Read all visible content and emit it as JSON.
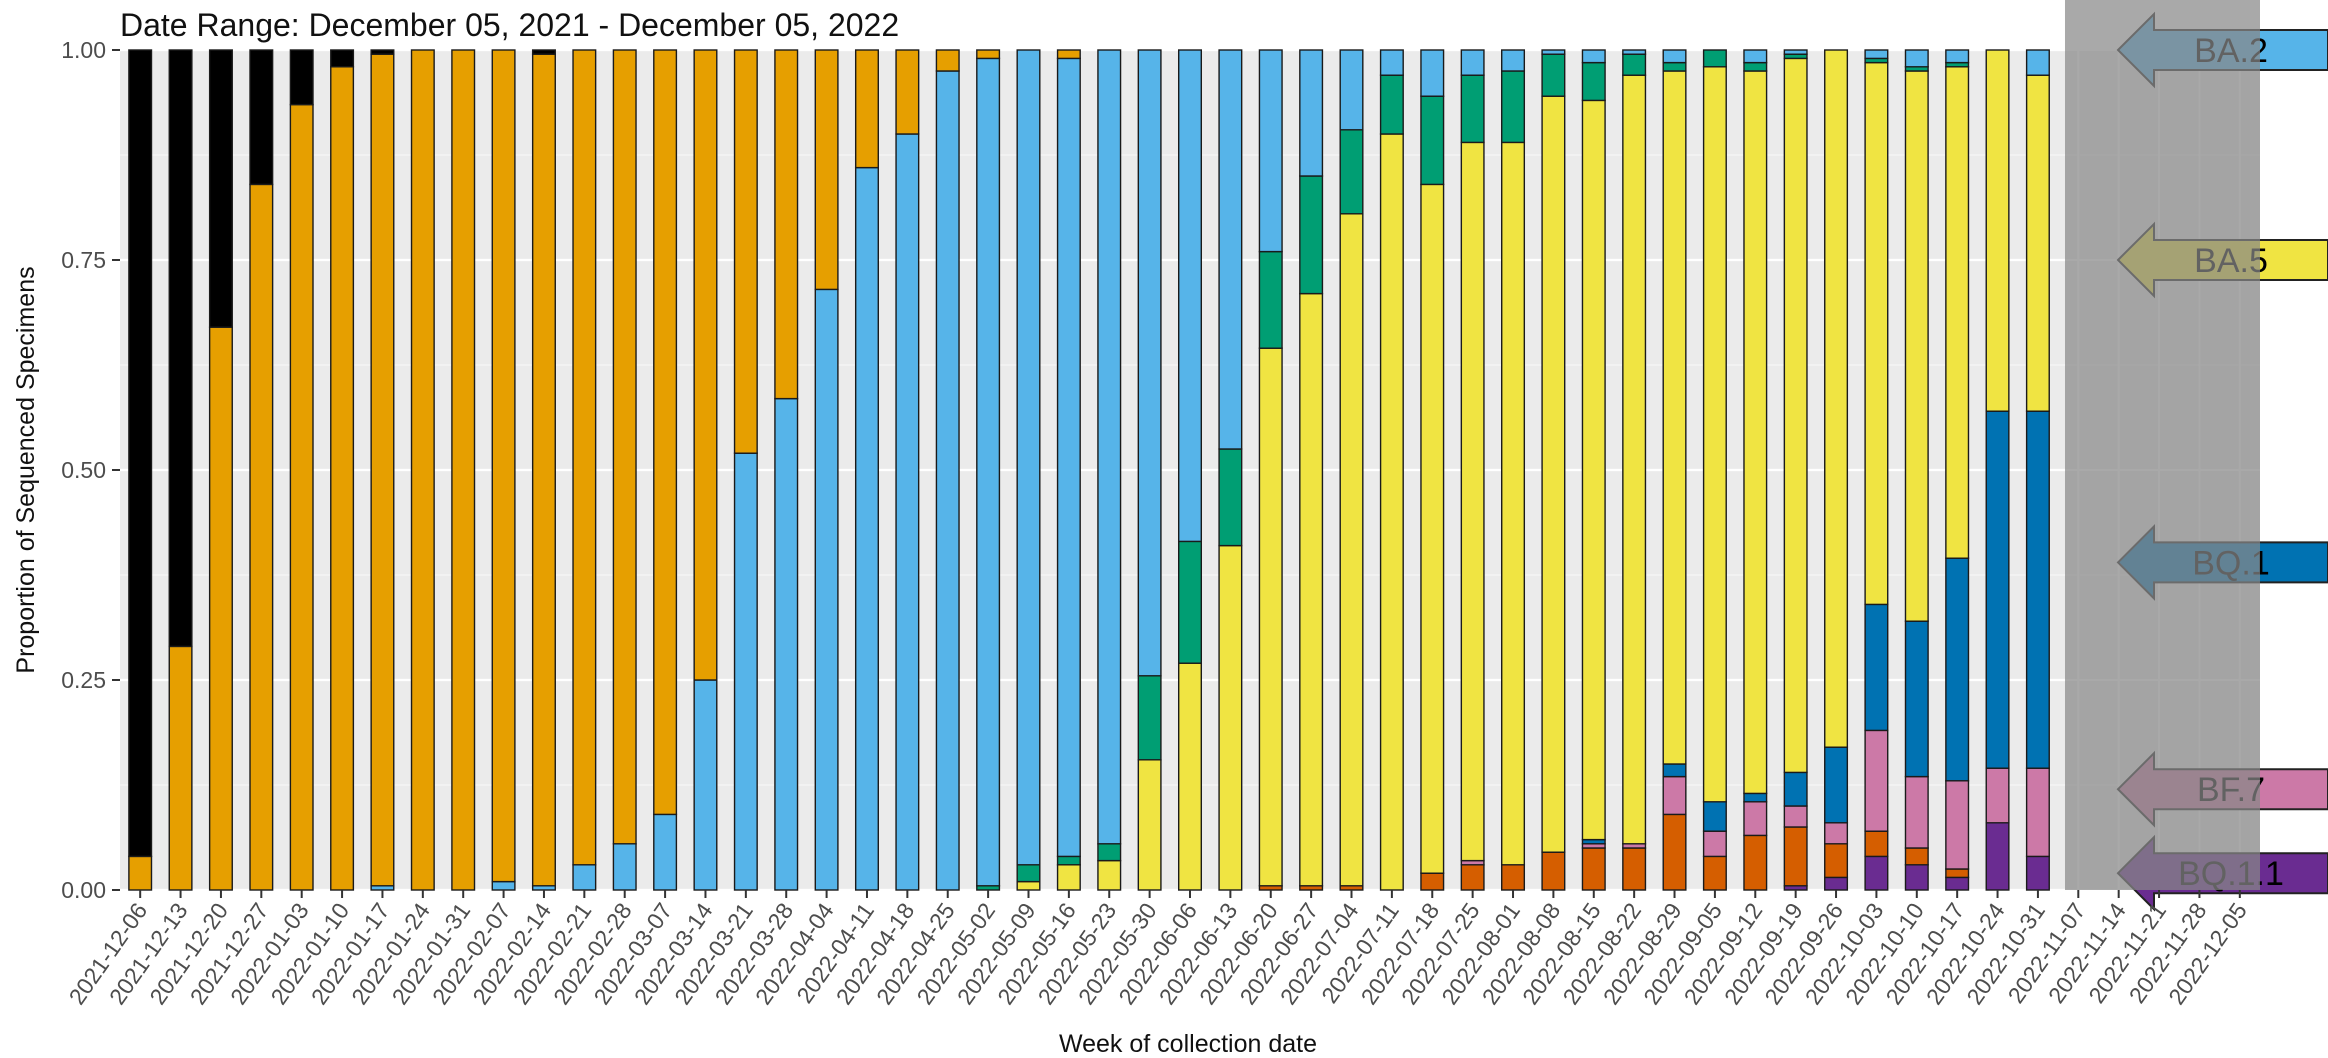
{
  "chart_data": {
    "type": "bar",
    "stacked": true,
    "title": "Date Range: December 05, 2021 - December 05, 2022",
    "xlabel": "Week of collection date",
    "ylabel": "Proportion of Sequenced Specimens",
    "ylim": [
      0,
      1
    ],
    "yticks": [
      "0.00",
      "0.25",
      "0.50",
      "0.75",
      "1.00"
    ],
    "grid": true,
    "shaded_region_start": "2022-11-07",
    "categories": [
      "2021-12-06",
      "2021-12-13",
      "2021-12-20",
      "2021-12-27",
      "2022-01-03",
      "2022-01-10",
      "2022-01-17",
      "2022-01-24",
      "2022-01-31",
      "2022-02-07",
      "2022-02-14",
      "2022-02-21",
      "2022-02-28",
      "2022-03-07",
      "2022-03-14",
      "2022-03-21",
      "2022-03-28",
      "2022-04-04",
      "2022-04-11",
      "2022-04-18",
      "2022-04-25",
      "2022-05-02",
      "2022-05-09",
      "2022-05-16",
      "2022-05-23",
      "2022-05-30",
      "2022-06-06",
      "2022-06-13",
      "2022-06-20",
      "2022-06-27",
      "2022-07-04",
      "2022-07-11",
      "2022-07-18",
      "2022-07-25",
      "2022-08-01",
      "2022-08-08",
      "2022-08-15",
      "2022-08-22",
      "2022-08-29",
      "2022-09-05",
      "2022-09-12",
      "2022-09-19",
      "2022-09-26",
      "2022-10-03",
      "2022-10-10",
      "2022-10-17",
      "2022-10-24",
      "2022-10-31",
      "2022-11-07",
      "2022-11-14",
      "2022-11-21",
      "2022-11-28",
      "2022-12-05"
    ],
    "colors": {
      "BQ.1.1": "#6a2c91",
      "BF.7": "#cc79a7",
      "BQ.1": "#0072b2",
      "BA.5": "#f0e442",
      "BA.2": "#56b4e9",
      "orange2": "#d55e00",
      "green": "#009e73",
      "orange": "#e69f00",
      "black": "#000000"
    },
    "stack_order": [
      "BQ.1.1",
      "orange2",
      "BF.7",
      "BQ.1",
      "BA.5",
      "green",
      "BA.2",
      "orange",
      "black"
    ],
    "bars": [
      {
        "BQ.1.1": 0,
        "orange2": 0,
        "BF.7": 0,
        "BQ.1": 0,
        "BA.5": 0,
        "green": 0,
        "BA.2": 0,
        "orange": 0.04,
        "black": 0.96
      },
      {
        "BQ.1.1": 0,
        "orange2": 0,
        "BF.7": 0,
        "BQ.1": 0,
        "BA.5": 0,
        "green": 0,
        "BA.2": 0,
        "orange": 0.29,
        "black": 0.71
      },
      {
        "BQ.1.1": 0,
        "orange2": 0,
        "BF.7": 0,
        "BQ.1": 0,
        "BA.5": 0,
        "green": 0,
        "BA.2": 0,
        "orange": 0.67,
        "black": 0.33
      },
      {
        "BQ.1.1": 0,
        "orange2": 0,
        "BF.7": 0,
        "BQ.1": 0,
        "BA.5": 0,
        "green": 0,
        "BA.2": 0,
        "orange": 0.84,
        "black": 0.16
      },
      {
        "BQ.1.1": 0,
        "orange2": 0,
        "BF.7": 0,
        "BQ.1": 0,
        "BA.5": 0,
        "green": 0,
        "BA.2": 0,
        "orange": 0.935,
        "black": 0.065
      },
      {
        "BQ.1.1": 0,
        "orange2": 0,
        "BF.7": 0,
        "BQ.1": 0,
        "BA.5": 0,
        "green": 0,
        "BA.2": 0,
        "orange": 0.98,
        "black": 0.02
      },
      {
        "BQ.1.1": 0,
        "orange2": 0,
        "BF.7": 0,
        "BQ.1": 0,
        "BA.5": 0,
        "green": 0,
        "BA.2": 0.005,
        "orange": 0.99,
        "black": 0.005
      },
      {
        "BQ.1.1": 0,
        "orange2": 0,
        "BF.7": 0,
        "BQ.1": 0,
        "BA.5": 0,
        "green": 0,
        "BA.2": 0,
        "orange": 1.0,
        "black": 0
      },
      {
        "BQ.1.1": 0,
        "orange2": 0,
        "BF.7": 0,
        "BQ.1": 0,
        "BA.5": 0,
        "green": 0,
        "BA.2": 0,
        "orange": 1.0,
        "black": 0
      },
      {
        "BQ.1.1": 0,
        "orange2": 0,
        "BF.7": 0,
        "BQ.1": 0,
        "BA.5": 0,
        "green": 0,
        "BA.2": 0.01,
        "orange": 0.99,
        "black": 0
      },
      {
        "BQ.1.1": 0,
        "orange2": 0,
        "BF.7": 0,
        "BQ.1": 0,
        "BA.5": 0,
        "green": 0,
        "BA.2": 0.005,
        "orange": 0.99,
        "black": 0.005
      },
      {
        "BQ.1.1": 0,
        "orange2": 0,
        "BF.7": 0,
        "BQ.1": 0,
        "BA.5": 0,
        "green": 0,
        "BA.2": 0.03,
        "orange": 0.97,
        "black": 0
      },
      {
        "BQ.1.1": 0,
        "orange2": 0,
        "BF.7": 0,
        "BQ.1": 0,
        "BA.5": 0,
        "green": 0,
        "BA.2": 0.055,
        "orange": 0.945,
        "black": 0
      },
      {
        "BQ.1.1": 0,
        "orange2": 0,
        "BF.7": 0,
        "BQ.1": 0,
        "BA.5": 0,
        "green": 0,
        "BA.2": 0.09,
        "orange": 0.91,
        "black": 0
      },
      {
        "BQ.1.1": 0,
        "orange2": 0,
        "BF.7": 0,
        "BQ.1": 0,
        "BA.5": 0,
        "green": 0,
        "BA.2": 0.25,
        "orange": 0.75,
        "black": 0
      },
      {
        "BQ.1.1": 0,
        "orange2": 0,
        "BF.7": 0,
        "BQ.1": 0,
        "BA.5": 0,
        "green": 0,
        "BA.2": 0.52,
        "orange": 0.48,
        "black": 0
      },
      {
        "BQ.1.1": 0,
        "orange2": 0,
        "BF.7": 0,
        "BQ.1": 0,
        "BA.5": 0,
        "green": 0,
        "BA.2": 0.585,
        "orange": 0.415,
        "black": 0
      },
      {
        "BQ.1.1": 0,
        "orange2": 0,
        "BF.7": 0,
        "BQ.1": 0,
        "BA.5": 0,
        "green": 0,
        "BA.2": 0.715,
        "orange": 0.285,
        "black": 0
      },
      {
        "BQ.1.1": 0,
        "orange2": 0,
        "BF.7": 0,
        "BQ.1": 0,
        "BA.5": 0,
        "green": 0,
        "BA.2": 0.86,
        "orange": 0.14,
        "black": 0
      },
      {
        "BQ.1.1": 0,
        "orange2": 0,
        "BF.7": 0,
        "BQ.1": 0,
        "BA.5": 0,
        "green": 0,
        "BA.2": 0.9,
        "orange": 0.1,
        "black": 0
      },
      {
        "BQ.1.1": 0,
        "orange2": 0,
        "BF.7": 0,
        "BQ.1": 0,
        "BA.5": 0,
        "green": 0,
        "BA.2": 0.975,
        "orange": 0.025,
        "black": 0
      },
      {
        "BQ.1.1": 0,
        "orange2": 0,
        "BF.7": 0,
        "BQ.1": 0,
        "BA.5": 0,
        "green": 0.005,
        "BA.2": 0.985,
        "orange": 0.01,
        "black": 0
      },
      {
        "BQ.1.1": 0,
        "orange2": 0,
        "BF.7": 0,
        "BQ.1": 0,
        "BA.5": 0.01,
        "green": 0.02,
        "BA.2": 0.97,
        "orange": 0,
        "black": 0
      },
      {
        "BQ.1.1": 0,
        "orange2": 0,
        "BF.7": 0,
        "BQ.1": 0,
        "BA.5": 0.03,
        "green": 0.01,
        "BA.2": 0.95,
        "orange": 0.01,
        "black": 0
      },
      {
        "BQ.1.1": 0,
        "orange2": 0,
        "BF.7": 0,
        "BQ.1": 0,
        "BA.5": 0.035,
        "green": 0.02,
        "BA.2": 0.945,
        "orange": 0,
        "black": 0
      },
      {
        "BQ.1.1": 0,
        "orange2": 0,
        "BF.7": 0,
        "BQ.1": 0,
        "BA.5": 0.155,
        "green": 0.1,
        "BA.2": 0.745,
        "orange": 0,
        "black": 0
      },
      {
        "BQ.1.1": 0,
        "orange2": 0,
        "BF.7": 0,
        "BQ.1": 0,
        "BA.5": 0.27,
        "green": 0.145,
        "BA.2": 0.585,
        "orange": 0,
        "black": 0
      },
      {
        "BQ.1.1": 0,
        "orange2": 0,
        "BF.7": 0,
        "BQ.1": 0,
        "BA.5": 0.41,
        "green": 0.115,
        "BA.2": 0.475,
        "orange": 0,
        "black": 0
      },
      {
        "BQ.1.1": 0,
        "orange2": 0.005,
        "BF.7": 0,
        "BQ.1": 0,
        "BA.5": 0.64,
        "green": 0.115,
        "BA.2": 0.24,
        "orange": 0,
        "black": 0
      },
      {
        "BQ.1.1": 0,
        "orange2": 0.005,
        "BF.7": 0,
        "BQ.1": 0,
        "BA.5": 0.705,
        "green": 0.14,
        "BA.2": 0.15,
        "orange": 0,
        "black": 0
      },
      {
        "BQ.1.1": 0,
        "orange2": 0.005,
        "BF.7": 0,
        "BQ.1": 0,
        "BA.5": 0.8,
        "green": 0.1,
        "BA.2": 0.095,
        "orange": 0,
        "black": 0
      },
      {
        "BQ.1.1": 0,
        "orange2": 0,
        "BF.7": 0,
        "BQ.1": 0,
        "BA.5": 0.9,
        "green": 0.07,
        "BA.2": 0.03,
        "orange": 0,
        "black": 0
      },
      {
        "BQ.1.1": 0,
        "orange2": 0.02,
        "BF.7": 0,
        "BQ.1": 0,
        "BA.5": 0.82,
        "green": 0.105,
        "BA.2": 0.055,
        "orange": 0,
        "black": 0
      },
      {
        "BQ.1.1": 0,
        "orange2": 0.03,
        "BF.7": 0.005,
        "BQ.1": 0,
        "BA.5": 0.855,
        "green": 0.08,
        "BA.2": 0.03,
        "orange": 0,
        "black": 0
      },
      {
        "BQ.1.1": 0,
        "orange2": 0.03,
        "BF.7": 0,
        "BQ.1": 0,
        "BA.5": 0.86,
        "green": 0.085,
        "BA.2": 0.025,
        "orange": 0,
        "black": 0
      },
      {
        "BQ.1.1": 0,
        "orange2": 0.045,
        "BF.7": 0,
        "BQ.1": 0,
        "BA.5": 0.9,
        "green": 0.05,
        "BA.2": 0.005,
        "orange": 0,
        "black": 0
      },
      {
        "BQ.1.1": 0,
        "orange2": 0.05,
        "BF.7": 0.005,
        "BQ.1": 0.005,
        "BA.5": 0.88,
        "green": 0.045,
        "BA.2": 0.015,
        "orange": 0,
        "black": 0
      },
      {
        "BQ.1.1": 0,
        "orange2": 0.05,
        "BF.7": 0.005,
        "BQ.1": 0,
        "BA.5": 0.915,
        "green": 0.025,
        "BA.2": 0.005,
        "orange": 0,
        "black": 0
      },
      {
        "BQ.1.1": 0,
        "orange2": 0.09,
        "BF.7": 0.045,
        "BQ.1": 0.015,
        "BA.5": 0.825,
        "green": 0.01,
        "BA.2": 0.015,
        "orange": 0,
        "black": 0
      },
      {
        "BQ.1.1": 0,
        "orange2": 0.04,
        "BF.7": 0.03,
        "BQ.1": 0.035,
        "BA.5": 0.875,
        "green": 0.02,
        "BA.2": 0,
        "orange": 0,
        "black": 0
      },
      {
        "BQ.1.1": 0,
        "orange2": 0.065,
        "BF.7": 0.04,
        "BQ.1": 0.01,
        "BA.5": 0.86,
        "green": 0.01,
        "BA.2": 0.015,
        "orange": 0,
        "black": 0
      },
      {
        "BQ.1.1": 0.005,
        "orange2": 0.07,
        "BF.7": 0.025,
        "BQ.1": 0.04,
        "BA.5": 0.85,
        "green": 0.005,
        "BA.2": 0.005,
        "orange": 0,
        "black": 0
      },
      {
        "BQ.1.1": 0.015,
        "orange2": 0.04,
        "BF.7": 0.025,
        "BQ.1": 0.09,
        "BA.5": 0.83,
        "green": 0,
        "BA.2": 0,
        "orange": 0,
        "black": 0
      },
      {
        "BQ.1.1": 0.04,
        "orange2": 0.03,
        "BF.7": 0.12,
        "BQ.1": 0.15,
        "BA.5": 0.645,
        "green": 0.005,
        "BA.2": 0.01,
        "orange": 0,
        "black": 0
      },
      {
        "BQ.1.1": 0.03,
        "orange2": 0.02,
        "BF.7": 0.085,
        "BQ.1": 0.185,
        "BA.5": 0.655,
        "green": 0.005,
        "BA.2": 0.02,
        "orange": 0,
        "black": 0
      },
      {
        "BQ.1.1": 0.015,
        "orange2": 0.01,
        "BF.7": 0.105,
        "BQ.1": 0.265,
        "BA.5": 0.585,
        "green": 0.005,
        "BA.2": 0.015,
        "orange": 0,
        "black": 0
      },
      {
        "BQ.1.1": 0.08,
        "orange2": 0,
        "BF.7": 0.065,
        "BQ.1": 0.425,
        "BA.5": 0.43,
        "green": 0,
        "BA.2": 0,
        "orange": 0,
        "black": 0
      },
      {
        "BQ.1.1": 0.04,
        "orange2": 0,
        "BF.7": 0.105,
        "BQ.1": 0.425,
        "BA.5": 0.4,
        "green": 0,
        "BA.2": 0.03,
        "orange": 0,
        "black": 0
      }
    ],
    "callouts": [
      {
        "label": "BA.2",
        "y": 1.0,
        "color": "#56b4e9"
      },
      {
        "label": "BA.5",
        "y": 0.75,
        "color": "#f0e442"
      },
      {
        "label": "BQ.1",
        "y": 0.39,
        "color": "#0072b2"
      },
      {
        "label": "BF.7",
        "y": 0.12,
        "color": "#cc79a7"
      },
      {
        "label": "BQ.1.1",
        "y": 0.02,
        "color": "#6a2c91"
      }
    ]
  }
}
